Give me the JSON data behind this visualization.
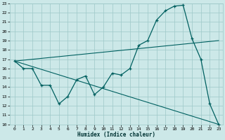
{
  "title": "",
  "xlabel": "Humidex (Indice chaleur)",
  "ylabel": "",
  "bg_color": "#cce8e8",
  "grid_color": "#9ec8c8",
  "line_color": "#006060",
  "xlim": [
    -0.5,
    23.5
  ],
  "ylim": [
    10,
    23
  ],
  "xticks": [
    0,
    1,
    2,
    3,
    4,
    5,
    6,
    7,
    8,
    9,
    10,
    11,
    12,
    13,
    14,
    15,
    16,
    17,
    18,
    19,
    20,
    21,
    22,
    23
  ],
  "yticks": [
    10,
    11,
    12,
    13,
    14,
    15,
    16,
    17,
    18,
    19,
    20,
    21,
    22,
    23
  ],
  "series1_x": [
    0,
    1,
    2,
    3,
    4,
    5,
    6,
    7,
    8,
    9,
    10,
    11,
    12,
    13,
    14,
    15,
    16,
    17,
    18,
    19,
    20,
    21,
    22,
    23
  ],
  "series1_y": [
    16.8,
    16.0,
    16.0,
    14.2,
    14.2,
    12.2,
    13.0,
    14.8,
    15.2,
    13.2,
    14.0,
    15.5,
    15.3,
    16.0,
    18.5,
    19.0,
    21.2,
    22.2,
    22.7,
    22.8,
    19.2,
    17.0,
    12.2,
    10.0
  ],
  "series2_x": [
    0,
    23
  ],
  "series2_y": [
    16.8,
    19.0
  ],
  "series3_x": [
    0,
    23
  ],
  "series3_y": [
    16.8,
    10.0
  ]
}
